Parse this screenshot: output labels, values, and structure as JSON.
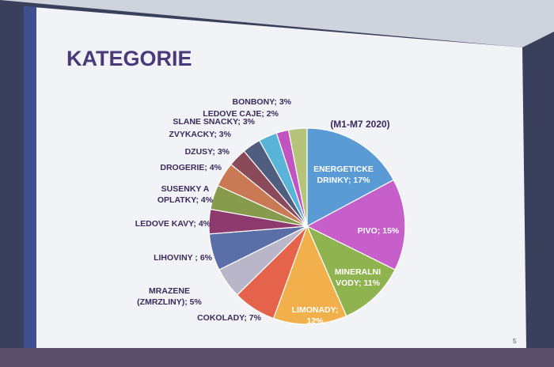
{
  "chart_data": {
    "type": "pie",
    "title": "KATEGORIE",
    "subtitle": "(M1-M7 2020)",
    "categories": [
      "ENERGETICKE DRINKY",
      "PIVO",
      "MINERALNI VODY",
      "LIMONADY",
      "COKOLADY",
      "MRAZENE (ZMRZLINY)",
      "LIHOVINY",
      "LEDOVE KAVY",
      "SUSENKY A OPLATKY",
      "DROGERIE",
      "DZUSY",
      "ZVYKACKY",
      "SLANE SNACKY",
      "LEDOVE CAJE",
      "BONBONY"
    ],
    "values": [
      17,
      15,
      11,
      12,
      7,
      5,
      6,
      4,
      4,
      4,
      3,
      3,
      3,
      2,
      3
    ],
    "value_labels": [
      [
        "ENERGETICKE",
        "DRINKY; 17%"
      ],
      [
        "PIVO; 15%"
      ],
      [
        "MINERALNI",
        "VODY; 11%"
      ],
      [
        "LIMONADY;",
        "12%"
      ],
      [
        "COKOLADY; 7%"
      ],
      [
        "MRAZENE",
        "(ZMRZLINY); 5%"
      ],
      [
        "LIHOVINY ; 6%"
      ],
      [
        "LEDOVE KAVY; 4%"
      ],
      [
        "SUSENKY A",
        "OPLATKY; 4%"
      ],
      [
        "DROGERIE; 4%"
      ],
      [
        "DZUSY; 3%"
      ],
      [
        "ZVYKACKY; 3%"
      ],
      [
        "SLANE SNACKY; 3%"
      ],
      [
        "LEDOVE CAJE; 2%"
      ],
      [
        "BONBONY; 3%"
      ]
    ],
    "colors": [
      "#5b9bd5",
      "#c65fca",
      "#8fb34f",
      "#f2b04c",
      "#e6634b",
      "#b8b6c8",
      "#5a6ea8",
      "#8e3a6e",
      "#879b4c",
      "#c97a54",
      "#8b4a5a",
      "#4f5d7e",
      "#5ab4d9",
      "#c254c2",
      "#b5c47a"
    ],
    "page_number": "5"
  }
}
